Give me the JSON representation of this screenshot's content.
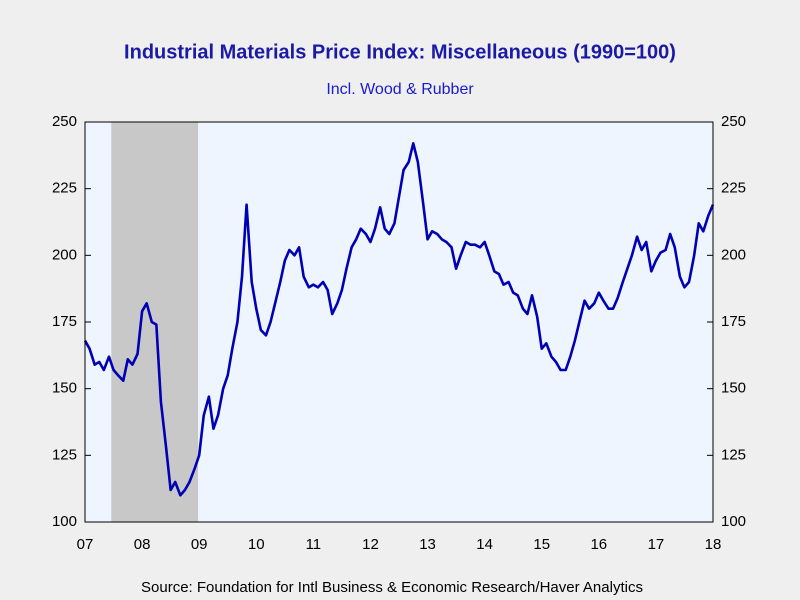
{
  "chart_data": {
    "type": "line",
    "title": "Industrial Materials Price Index: Miscellaneous (1990=100)",
    "subtitle": "Incl. Wood & Rubber",
    "source": "Source:  Foundation for Intl Business & Economic Research/Haver Analytics",
    "x": [
      2007.5,
      2007.58,
      2007.67,
      2007.75,
      2007.83,
      2007.92,
      2008.0,
      2008.08,
      2008.17,
      2008.25,
      2008.33,
      2008.42,
      2008.5,
      2008.58,
      2008.67,
      2008.75,
      2008.83,
      2008.92,
      2009.0,
      2009.08,
      2009.17,
      2009.25,
      2009.33,
      2009.42,
      2009.5,
      2009.58,
      2009.67,
      2009.75,
      2009.83,
      2009.92,
      2010.0,
      2010.08,
      2010.17,
      2010.25,
      2010.33,
      2010.42,
      2010.5,
      2010.58,
      2010.67,
      2010.75,
      2010.83,
      2010.92,
      2011.0,
      2011.08,
      2011.17,
      2011.25,
      2011.33,
      2011.42,
      2011.5,
      2011.58,
      2011.67,
      2011.75,
      2011.83,
      2011.92,
      2012.0,
      2012.08,
      2012.17,
      2012.25,
      2012.33,
      2012.42,
      2012.5,
      2012.58,
      2012.67,
      2012.75,
      2012.83,
      2012.92,
      2013.0,
      2013.08,
      2013.17,
      2013.25,
      2013.33,
      2013.42,
      2013.5,
      2013.58,
      2013.67,
      2013.75,
      2013.83,
      2013.92,
      2014.0,
      2014.08,
      2014.17,
      2014.25,
      2014.33,
      2014.42,
      2014.5,
      2014.58,
      2014.67,
      2014.75,
      2014.83,
      2014.92,
      2015.0,
      2015.08,
      2015.17,
      2015.25,
      2015.33,
      2015.42,
      2015.5,
      2015.58,
      2015.67,
      2015.75,
      2015.83,
      2015.92,
      2016.0,
      2016.08,
      2016.17,
      2016.25,
      2016.33,
      2016.42,
      2016.5,
      2016.58,
      2016.67,
      2016.75,
      2016.83,
      2016.92,
      2017.0,
      2017.08,
      2017.17,
      2017.25,
      2017.33,
      2017.42,
      2017.5,
      2017.58,
      2017.67,
      2017.75,
      2017.83,
      2017.92,
      2018.0,
      2018.08,
      2018.17,
      2018.25,
      2018.33,
      2018.42,
      2018.5
    ],
    "series": [
      {
        "color": "#0000b4",
        "values": [
          168,
          165,
          159,
          160,
          157,
          162,
          157,
          155,
          153,
          161,
          159,
          163,
          179,
          182,
          175,
          174,
          145,
          128,
          112,
          115,
          110,
          112,
          115,
          120,
          125,
          140,
          147,
          135,
          140,
          150,
          155,
          165,
          175,
          192,
          219,
          190,
          180,
          172,
          170,
          175,
          182,
          190,
          198,
          202,
          200,
          203,
          192,
          188,
          189,
          188,
          190,
          187,
          178,
          182,
          187,
          195,
          203,
          206,
          210,
          208,
          205,
          210,
          218,
          210,
          208,
          212,
          222,
          232,
          235,
          242,
          235,
          220,
          206,
          209,
          208,
          206,
          205,
          203,
          195,
          200,
          205,
          204,
          204,
          203,
          205,
          200,
          194,
          193,
          189,
          190,
          186,
          185,
          180,
          178,
          185,
          177,
          165,
          167,
          162,
          160,
          157,
          157,
          162,
          168,
          176,
          183,
          180,
          182,
          186,
          183,
          180,
          180,
          184,
          190,
          195,
          200,
          207,
          202,
          205,
          194,
          198,
          201,
          202,
          208,
          203,
          192,
          188,
          190,
          200,
          212,
          209,
          215,
          219
        ]
      }
    ],
    "xlim": [
      2007.5,
      2018.5
    ],
    "xticks": [
      {
        "value": 2007.5,
        "label": "07"
      },
      {
        "value": 2008.5,
        "label": "08"
      },
      {
        "value": 2009.5,
        "label": "09"
      },
      {
        "value": 2010.5,
        "label": "10"
      },
      {
        "value": 2011.5,
        "label": "11"
      },
      {
        "value": 2012.5,
        "label": "12"
      },
      {
        "value": 2013.5,
        "label": "13"
      },
      {
        "value": 2014.5,
        "label": "14"
      },
      {
        "value": 2015.5,
        "label": "15"
      },
      {
        "value": 2016.5,
        "label": "16"
      },
      {
        "value": 2017.5,
        "label": "17"
      },
      {
        "value": 2018.5,
        "label": "18"
      }
    ],
    "ylim": [
      100,
      250
    ],
    "yticks": [
      100,
      125,
      150,
      175,
      200,
      225,
      250
    ],
    "y2lim": [
      100,
      250
    ],
    "y2ticks": [
      100,
      125,
      150,
      175,
      200,
      225,
      250
    ],
    "shaded_periods": [
      [
        2007.96,
        2009.48
      ]
    ],
    "shade_color": "#c8c8c8"
  }
}
